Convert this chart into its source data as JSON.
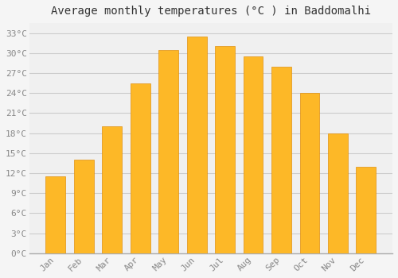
{
  "title": "Average monthly temperatures (°C ) in Baddomalhi",
  "months": [
    "Jan",
    "Feb",
    "Mar",
    "Apr",
    "May",
    "Jun",
    "Jul",
    "Aug",
    "Sep",
    "Oct",
    "Nov",
    "Dec"
  ],
  "temperatures": [
    11.5,
    14.0,
    19.0,
    25.5,
    30.5,
    32.5,
    31.0,
    29.5,
    28.0,
    24.0,
    18.0,
    13.0
  ],
  "bar_color_top": "#FDB827",
  "bar_color_bottom": "#F5A800",
  "bar_edge_color": "#E09010",
  "background_color": "#f5f5f5",
  "plot_bg_color": "#f0f0f0",
  "grid_color": "#cccccc",
  "yticks": [
    0,
    3,
    6,
    9,
    12,
    15,
    18,
    21,
    24,
    27,
    30,
    33
  ],
  "ylim": [
    0,
    34.5
  ],
  "ylabel_suffix": "°C",
  "title_fontsize": 10,
  "tick_fontsize": 8,
  "label_color": "#888888",
  "font_family": "monospace"
}
